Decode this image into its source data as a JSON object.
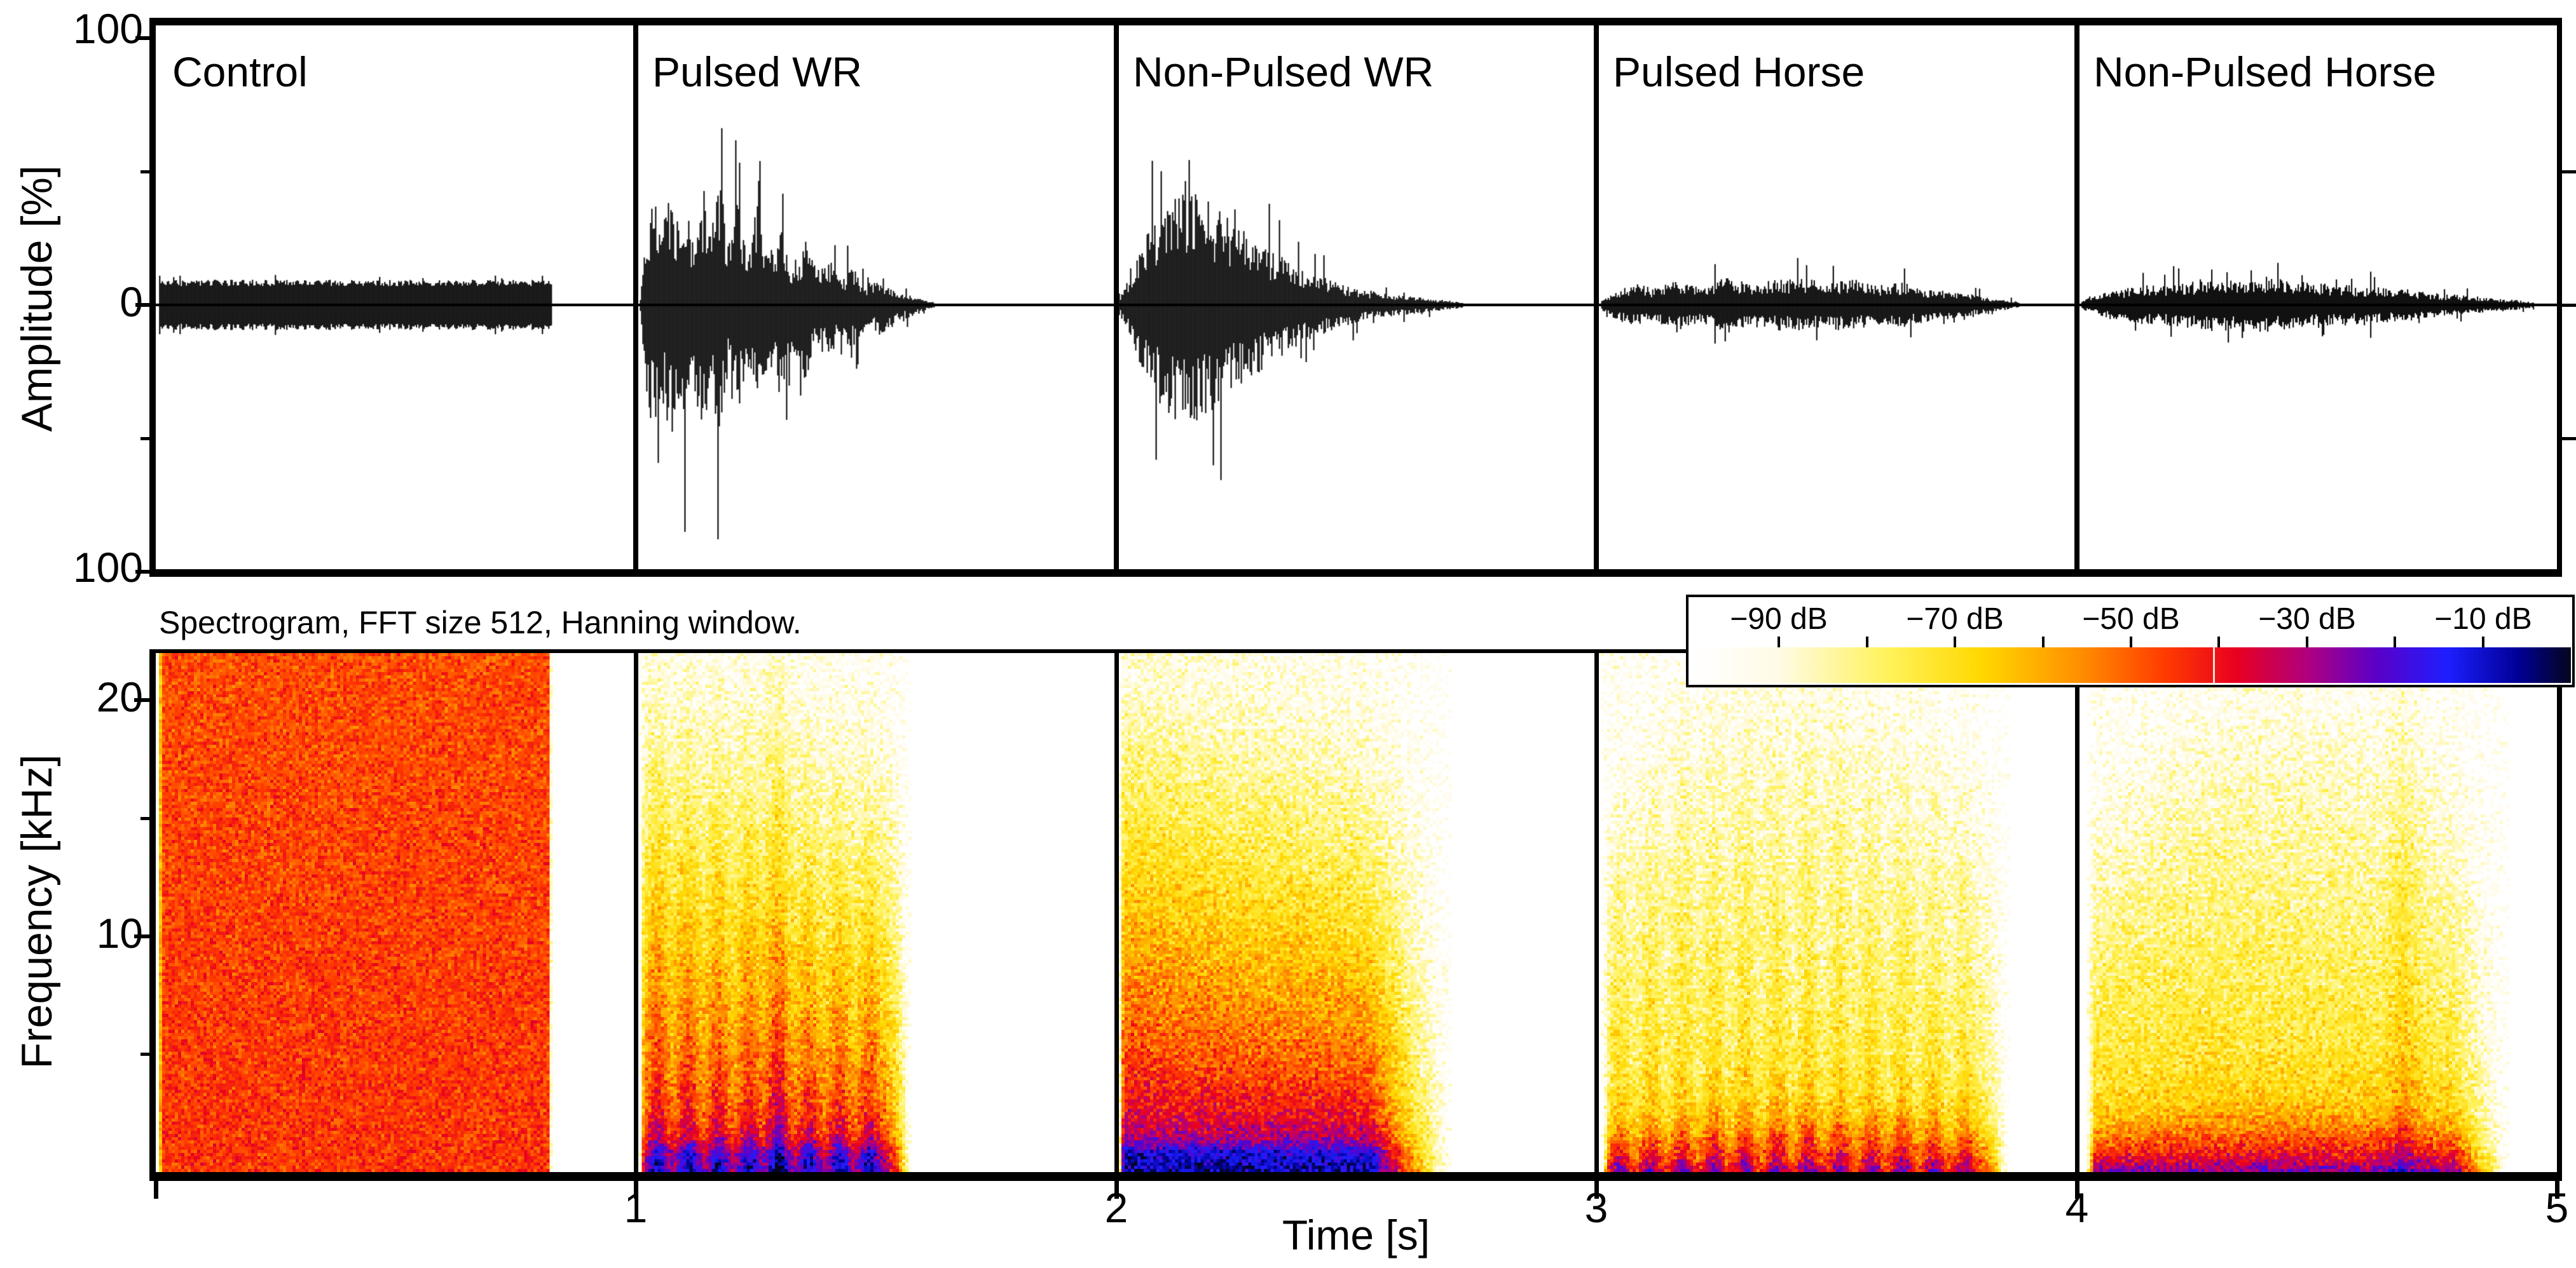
{
  "figure": {
    "background_color": "#ffffff",
    "foreground_color": "#000000"
  },
  "chart_data": [
    {
      "type": "line",
      "role": "waveform-row",
      "ylabel": "Amplitude [%]",
      "ylim": [
        -100,
        100
      ],
      "ytick_values": [
        100,
        0,
        -100
      ],
      "ytick_labels": [
        "100",
        "0",
        "100"
      ],
      "ytick_minor_values": [
        50,
        -50
      ],
      "right_tick_values": [
        50,
        0,
        -50
      ],
      "x_unit": "s",
      "panels": [
        {
          "title": "Control",
          "waveform": "noise-block",
          "time_range_s": [
            0.007,
            0.825
          ],
          "amplitude_pct": 8,
          "negative_bias": 1.0,
          "seed": 3,
          "envelope": [
            [
              0,
              8
            ],
            [
              1,
              8
            ]
          ]
        },
        {
          "title": "Pulsed WR",
          "waveform": "pulsed",
          "time_range_s": [
            1.008,
            1.62
          ],
          "peak_amplitude_pct": 46,
          "negative_bias": 1.15,
          "seed": 7,
          "envelope": [
            [
              0,
              4
            ],
            [
              0.02,
              28
            ],
            [
              0.05,
              44
            ],
            [
              0.07,
              26
            ],
            [
              0.1,
              46
            ],
            [
              0.12,
              30
            ],
            [
              0.15,
              43
            ],
            [
              0.18,
              24
            ],
            [
              0.21,
              40
            ],
            [
              0.24,
              26
            ],
            [
              0.27,
              45
            ],
            [
              0.3,
              22
            ],
            [
              0.33,
              38
            ],
            [
              0.36,
              20
            ],
            [
              0.4,
              36
            ],
            [
              0.44,
              18
            ],
            [
              0.48,
              30
            ],
            [
              0.52,
              15
            ],
            [
              0.56,
              24
            ],
            [
              0.6,
              12
            ],
            [
              0.64,
              18
            ],
            [
              0.68,
              9
            ],
            [
              0.72,
              14
            ],
            [
              0.76,
              7
            ],
            [
              0.82,
              10
            ],
            [
              0.88,
              5
            ],
            [
              0.94,
              3
            ],
            [
              1,
              1
            ]
          ]
        },
        {
          "title": "Non-Pulsed WR",
          "waveform": "smooth",
          "time_range_s": [
            2.005,
            2.72
          ],
          "peak_amplitude_pct": 42,
          "negative_bias": 1.05,
          "seed": 13,
          "envelope": [
            [
              0,
              3
            ],
            [
              0.04,
              14
            ],
            [
              0.08,
              26
            ],
            [
              0.12,
              34
            ],
            [
              0.16,
              40
            ],
            [
              0.2,
              42
            ],
            [
              0.25,
              38
            ],
            [
              0.3,
              33
            ],
            [
              0.36,
              28
            ],
            [
              0.42,
              22
            ],
            [
              0.48,
              17
            ],
            [
              0.55,
              12
            ],
            [
              0.62,
              9
            ],
            [
              0.7,
              6
            ],
            [
              0.78,
              4
            ],
            [
              0.86,
              3
            ],
            [
              0.93,
              2
            ],
            [
              1,
              1
            ]
          ]
        },
        {
          "title": "Pulsed Horse",
          "waveform": "pulsed",
          "time_range_s": [
            3.01,
            3.88
          ],
          "peak_amplitude_pct": 10,
          "negative_bias": 1.0,
          "seed": 21,
          "envelope": [
            [
              0,
              2
            ],
            [
              0.04,
              6
            ],
            [
              0.08,
              8
            ],
            [
              0.12,
              6
            ],
            [
              0.18,
              9
            ],
            [
              0.24,
              7
            ],
            [
              0.3,
              10
            ],
            [
              0.36,
              8
            ],
            [
              0.42,
              9
            ],
            [
              0.48,
              10
            ],
            [
              0.54,
              8
            ],
            [
              0.6,
              9
            ],
            [
              0.66,
              7
            ],
            [
              0.72,
              8
            ],
            [
              0.78,
              6
            ],
            [
              0.84,
              5
            ],
            [
              0.92,
              3
            ],
            [
              1,
              1
            ]
          ]
        },
        {
          "title": "Non-Pulsed Horse",
          "waveform": "smooth",
          "time_range_s": [
            4.01,
            4.95
          ],
          "peak_amplitude_pct": 10,
          "negative_bias": 1.0,
          "seed": 29,
          "envelope": [
            [
              0,
              2
            ],
            [
              0.06,
              5
            ],
            [
              0.14,
              7
            ],
            [
              0.22,
              8
            ],
            [
              0.3,
              9
            ],
            [
              0.4,
              10
            ],
            [
              0.5,
              8
            ],
            [
              0.6,
              7
            ],
            [
              0.7,
              6
            ],
            [
              0.8,
              4
            ],
            [
              0.88,
              3
            ],
            [
              0.95,
              2
            ],
            [
              1,
              1
            ]
          ]
        }
      ]
    },
    {
      "type": "heatmap",
      "role": "spectrogram-row",
      "annotation": "Spectrogram, FFT size 512, Hanning window.",
      "xlabel": "Time [s]",
      "ylabel": "Frequency  [kHz]",
      "xlim_s": [
        0,
        5
      ],
      "ylim_khz": [
        0,
        22
      ],
      "xtick_values": [
        1,
        2,
        3,
        4,
        5
      ],
      "xtick_labels": [
        "1",
        "2",
        "3",
        "4",
        "5"
      ],
      "xtick_marks": [
        0,
        1,
        2,
        3,
        4,
        5
      ],
      "ytick_values": [
        20,
        10
      ],
      "ytick_labels": [
        "20",
        "10"
      ],
      "ytick_minor_values": [
        15,
        5
      ],
      "colorbar": {
        "range_db": [
          -100,
          0
        ],
        "tick_step_db": 10,
        "labels": [
          "−90 dB",
          "−70 dB",
          "−50 dB",
          "−30 dB",
          "−10 dB"
        ],
        "label_positions_db": [
          -90,
          -70,
          -50,
          -30,
          -10
        ],
        "stops": [
          [
            0,
            "#ffffff"
          ],
          [
            0.1,
            "#fffbe6"
          ],
          [
            0.22,
            "#fff35e"
          ],
          [
            0.33,
            "#ffd800"
          ],
          [
            0.44,
            "#ff9000"
          ],
          [
            0.54,
            "#ff3a00"
          ],
          [
            0.62,
            "#e80020"
          ],
          [
            0.7,
            "#b0007e"
          ],
          [
            0.78,
            "#5a00c8"
          ],
          [
            0.86,
            "#1e1eff"
          ],
          [
            0.94,
            "#000096"
          ],
          [
            1,
            "#06051e"
          ]
        ]
      },
      "panels": [
        {
          "title": "Control",
          "time_range_s": [
            0.007,
            0.825
          ],
          "seed": 101,
          "profile_khz_level": [
            [
              0,
              0.55
            ],
            [
              22,
              0.52
            ]
          ],
          "noise": 0.1,
          "wedge": 0,
          "attack": 0.005,
          "fade_out": 0.01,
          "stripes": null,
          "dome": null,
          "streaks": null,
          "level_scale": 1
        },
        {
          "title": "Pulsed WR",
          "time_range_s": [
            1.008,
            1.575
          ],
          "seed": 102,
          "profile_khz_level": [
            [
              0,
              0.93
            ],
            [
              0.7,
              0.88
            ],
            [
              1.4,
              0.7
            ],
            [
              2.5,
              0.62
            ],
            [
              4,
              0.56
            ],
            [
              6,
              0.5
            ],
            [
              9,
              0.42
            ],
            [
              12,
              0.34
            ],
            [
              15,
              0.26
            ],
            [
              18,
              0.18
            ],
            [
              20,
              0.13
            ],
            [
              22,
              0.1
            ]
          ],
          "noise": 0.13,
          "wedge": 0.5,
          "attack": 0.015,
          "fade_out": 0.1,
          "stripes": {
            "count": 9,
            "depth": 0.22
          },
          "dome": null,
          "streaks": [
            {
              "t": 1.29,
              "boost": 0.08,
              "sigma": 0.03
            }
          ],
          "level_scale": 1
        },
        {
          "title": "Non-Pulsed WR",
          "time_range_s": [
            2.005,
            2.7
          ],
          "seed": 103,
          "profile_khz_level": [
            [
              0,
              0.93
            ],
            [
              0.7,
              0.88
            ],
            [
              1.4,
              0.7
            ],
            [
              2.5,
              0.62
            ],
            [
              4,
              0.56
            ],
            [
              6,
              0.5
            ],
            [
              9,
              0.42
            ],
            [
              12,
              0.34
            ],
            [
              15,
              0.26
            ],
            [
              18,
              0.18
            ],
            [
              20,
              0.13
            ],
            [
              22,
              0.1
            ]
          ],
          "noise": 0.13,
          "wedge": 0.68,
          "attack": 0.015,
          "fade_out": 0.25,
          "stripes": null,
          "dome": null,
          "streaks": null,
          "level_scale": 1
        },
        {
          "title": "Pulsed Horse",
          "time_range_s": [
            3.01,
            3.86
          ],
          "seed": 104,
          "profile_khz_level": [
            [
              0,
              0.78
            ],
            [
              0.5,
              0.66
            ],
            [
              1.2,
              0.56
            ],
            [
              2,
              0.45
            ],
            [
              3,
              0.36
            ],
            [
              5,
              0.3
            ],
            [
              8,
              0.26
            ],
            [
              11,
              0.22
            ],
            [
              14,
              0.18
            ],
            [
              17,
              0.13
            ],
            [
              19.5,
              0.08
            ],
            [
              22,
              0.05
            ]
          ],
          "noise": 0.13,
          "wedge": 0.3,
          "attack": 0.02,
          "fade_out": 0.07,
          "stripes": {
            "count": 13,
            "depth": 0.26
          },
          "dome": {
            "min": 0.72,
            "max": 1.12
          },
          "streaks": null,
          "level_scale": 1
        },
        {
          "title": "Non-Pulsed Horse",
          "time_range_s": [
            4.02,
            4.9
          ],
          "seed": 105,
          "profile_khz_level": [
            [
              0,
              0.78
            ],
            [
              0.5,
              0.66
            ],
            [
              1.2,
              0.56
            ],
            [
              2,
              0.45
            ],
            [
              3,
              0.36
            ],
            [
              5,
              0.3
            ],
            [
              8,
              0.26
            ],
            [
              11,
              0.22
            ],
            [
              14,
              0.18
            ],
            [
              17,
              0.13
            ],
            [
              19.5,
              0.08
            ],
            [
              22,
              0.05
            ]
          ],
          "noise": 0.13,
          "wedge": 0.35,
          "attack": 0.02,
          "fade_out": 0.13,
          "stripes": null,
          "dome": {
            "min": 0.68,
            "max": 1.05
          },
          "streaks": [
            {
              "t": 4.68,
              "boost": 0.1,
              "sigma": 0.03
            }
          ],
          "level_scale": 0.95
        }
      ]
    }
  ]
}
